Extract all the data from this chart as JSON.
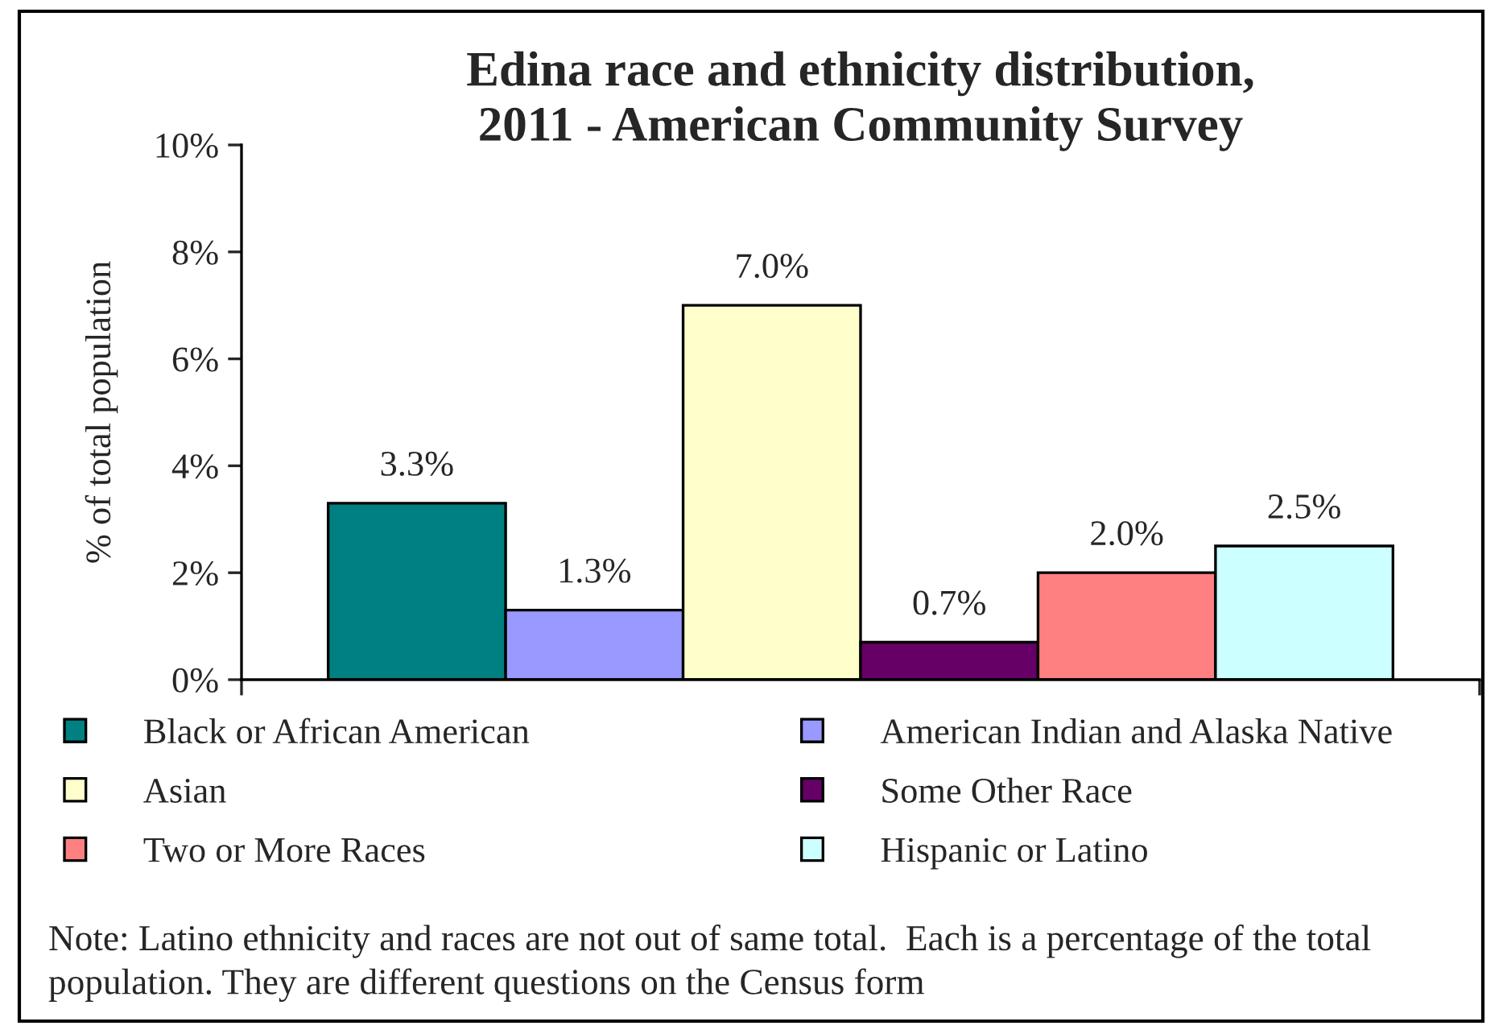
{
  "chart_data": {
    "type": "bar",
    "title": "Edina race and ethnicity distribution,\n2011 - American Community Survey",
    "ylabel": "% of total population",
    "categories": [
      null
    ],
    "series": [
      {
        "name": "Black or African American",
        "color": "#008080",
        "values": [
          3.3
        ],
        "value_labels": [
          "3.3%"
        ]
      },
      {
        "name": "American Indian and Alaska Native",
        "color": "#9999ff",
        "values": [
          1.3
        ],
        "value_labels": [
          "1.3%"
        ]
      },
      {
        "name": "Asian",
        "color": "#ffffcc",
        "values": [
          7.0
        ],
        "value_labels": [
          "7.0%"
        ]
      },
      {
        "name": "Some Other Race",
        "color": "#660066",
        "values": [
          0.7
        ],
        "value_labels": [
          "0.7%"
        ]
      },
      {
        "name": "Two or More Races",
        "color": "#ff8080",
        "values": [
          2.0
        ],
        "value_labels": [
          "2.0%"
        ]
      },
      {
        "name": "Hispanic or Latino",
        "color": "#ccffff",
        "values": [
          2.5
        ],
        "value_labels": [
          "2.5%"
        ]
      }
    ],
    "ylim": [
      0,
      10
    ],
    "yticks": [
      {
        "value": 0,
        "label": "0%"
      },
      {
        "value": 2,
        "label": "2%"
      },
      {
        "value": 4,
        "label": "4%"
      },
      {
        "value": 6,
        "label": "6%"
      },
      {
        "value": 8,
        "label": "8%"
      },
      {
        "value": 10,
        "label": "10%"
      }
    ],
    "legend": "bottom",
    "annotations": [
      "Note: Latino ethnicity and races are not out of same total.  Each is a percentage of the total population. They are different questions on the Census form"
    ]
  }
}
